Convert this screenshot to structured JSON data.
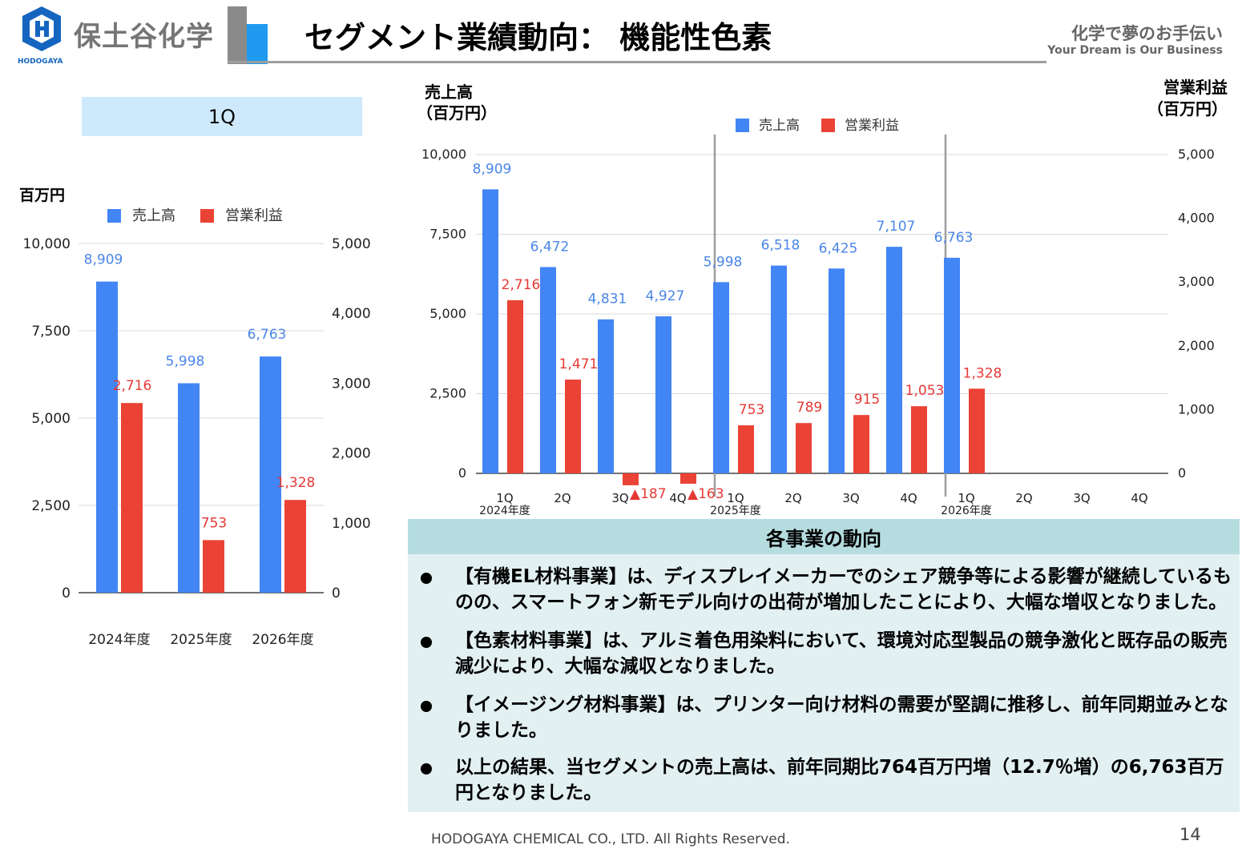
{
  "header": {
    "company_name": "保土谷化学",
    "company_name_en": "HODOGAYA",
    "title": "セグメント業績動向： 機能性色素",
    "tagline_ja": "化学で夢のお手伝い",
    "tagline_en": "Your Dream is Our Business"
  },
  "left_chart": {
    "box_label": "1Q",
    "unit_label": "百万円"
  },
  "right_chart": {
    "left_axis_title_1": "売上高",
    "left_axis_title_2": "（百万円）",
    "right_axis_title_1": "営業利益",
    "right_axis_title_2": "（百万円）"
  },
  "colors": {
    "sales": "#4285f4",
    "profit": "#ea4335",
    "sales_label": "#4a86e8",
    "profit_label": "#e53935"
  },
  "chart_data": [
    {
      "type": "bar",
      "title": "1Q",
      "categories": [
        "2024年度",
        "2025年度",
        "2026年度"
      ],
      "legend": [
        "売上高",
        "営業利益"
      ],
      "legend_position": "top",
      "series": [
        {
          "name": "売上高",
          "axis": "left",
          "values": [
            8909,
            5998,
            6763
          ],
          "labels": [
            "8,909",
            "5,998",
            "6,763"
          ]
        },
        {
          "name": "営業利益",
          "axis": "right",
          "values": [
            2716,
            753,
            1328
          ],
          "labels": [
            "2,716",
            "753",
            "1,328"
          ]
        }
      ],
      "ylabel": "百万円",
      "ylim": [
        0,
        10000
      ],
      "yticks": [
        "0",
        "2,500",
        "5,000",
        "7,500",
        "10,000"
      ],
      "y2lim": [
        0,
        5000
      ],
      "y2ticks": [
        "0",
        "1,000",
        "2,000",
        "3,000",
        "4,000",
        "5,000"
      ],
      "grid": true
    },
    {
      "type": "bar",
      "categories": [
        "1Q",
        "2Q",
        "3Q",
        "4Q",
        "1Q",
        "2Q",
        "3Q",
        "4Q",
        "1Q",
        "2Q",
        "3Q",
        "4Q"
      ],
      "groups": [
        "2024年度",
        "2025年度",
        "2026年度"
      ],
      "legend": [
        "売上高",
        "営業利益"
      ],
      "legend_position": "top",
      "series": [
        {
          "name": "売上高",
          "axis": "left",
          "values": [
            8909,
            6472,
            4831,
            4927,
            5998,
            6518,
            6425,
            7107,
            6763,
            null,
            null,
            null
          ],
          "labels": [
            "8,909",
            "6,472",
            "4,831",
            "4,927",
            "5,998",
            "6,518",
            "6,425",
            "7,107",
            "6,763",
            "",
            "",
            ""
          ]
        },
        {
          "name": "営業利益",
          "axis": "right",
          "values": [
            2716,
            1471,
            -187,
            -163,
            753,
            789,
            915,
            1053,
            1328,
            null,
            null,
            null
          ],
          "labels": [
            "2,716",
            "1,471",
            "▲187",
            "▲163",
            "753",
            "789",
            "915",
            "1,053",
            "1,328",
            "",
            "",
            ""
          ]
        }
      ],
      "ylabel": "売上高（百万円）",
      "y2label": "営業利益（百万円）",
      "ylim": [
        0,
        10000
      ],
      "yticks": [
        "0",
        "2,500",
        "5,000",
        "7,500",
        "10,000"
      ],
      "y2lim": [
        0,
        5000
      ],
      "y2ticks": [
        "0",
        "1,000",
        "2,000",
        "3,000",
        "4,000",
        "5,000"
      ],
      "grid": true
    }
  ],
  "panel": {
    "title": "各事業の動向",
    "bullets": [
      "【有機EL材料事業】は、ディスプレイメーカーでのシェア競争等による影響が継続しているものの、スマートフォン新モデル向けの出荷が増加したことにより、大幅な増収となりました。",
      "【色素材料事業】は、アルミ着色用染料において、環境対応型製品の競争激化と既存品の販売減少により、大幅な減収となりました。",
      "【イメージング材料事業】は、プリンター向け材料の需要が堅調に推移し、前年同期並みとなりました。",
      "以上の結果、当セグメントの売上高は、前年同期比764百万円増（12.7％増）の6,763百万円となりました。"
    ]
  },
  "footer": {
    "copyright": "HODOGAYA CHEMICAL CO., LTD. All Rights Reserved.",
    "page_number": "14"
  }
}
